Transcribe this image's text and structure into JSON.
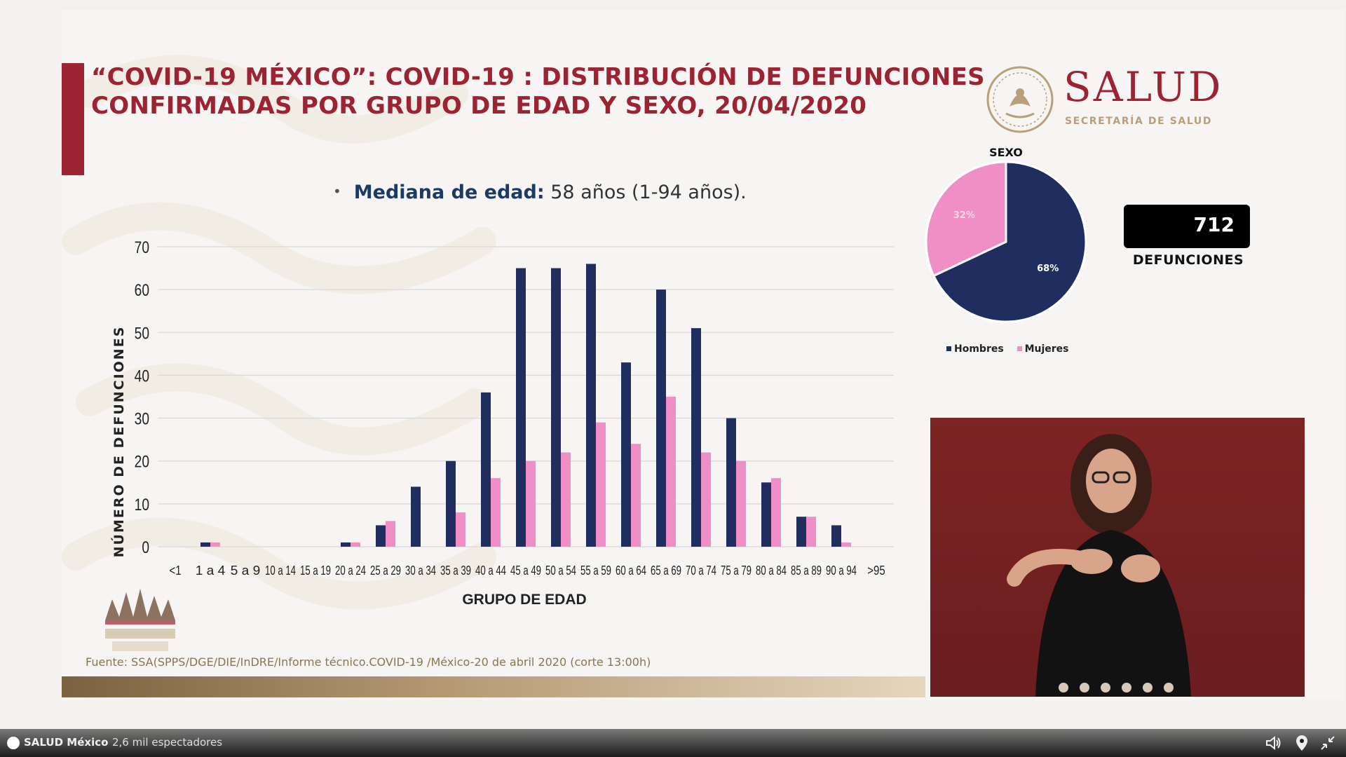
{
  "slide": {
    "title": "“COVID-19 MÉXICO”: COVID-19 : DISTRIBUCIÓN DE DEFUNCIONES CONFIRMADAS POR GRUPO DE EDAD Y SEXO, 20/04/2020",
    "logo_word": "SALUD",
    "logo_sub": "SECRETARÍA DE SALUD",
    "median_label": "Mediana de edad:",
    "median_value": "58 años (1-94 años).",
    "source": "Fuente: SSA(SPPS/DGE/DIE/InDRE/Informe técnico.COVID-19 /México-20 de abril 2020 (corte 13:00h)",
    "total_value": "712",
    "total_label": "DEFUNCIONES",
    "pie_title": "SEXO",
    "colors": {
      "brand": "#9c2331",
      "hombres": "#1f2e5e",
      "mujeres": "#f08fc6",
      "gold": "#b8a07a"
    }
  },
  "chart_data": [
    {
      "type": "bar",
      "xlabel": "GRUPO DE EDAD",
      "ylabel": "NÚMERO DE DEFUNCIONES",
      "ylim": [
        0,
        70
      ],
      "yticks": [
        0,
        10,
        20,
        30,
        40,
        50,
        60,
        70
      ],
      "grid": true,
      "categories": [
        "<1",
        "1 a 4",
        "5 a 9",
        "10 a 14",
        "15 a 19",
        "20 a 24",
        "25 a 29",
        "30 a 34",
        "35 a 39",
        "40 a 44",
        "45 a 49",
        "50 a 54",
        "55 a 59",
        "60 a 64",
        "65 a 69",
        "70 a 74",
        "75 a 79",
        "80 a 84",
        "85 a 89",
        "90 a 94",
        ">95"
      ],
      "series": [
        {
          "name": "Hombres",
          "color": "#1f2e5e",
          "values": [
            0,
            1,
            0,
            0,
            0,
            1,
            5,
            14,
            20,
            36,
            65,
            65,
            66,
            43,
            60,
            51,
            30,
            15,
            7,
            5,
            0
          ]
        },
        {
          "name": "Mujeres",
          "color": "#f08fc6",
          "values": [
            0,
            1,
            0,
            0,
            0,
            1,
            6,
            0,
            8,
            16,
            20,
            22,
            29,
            24,
            35,
            22,
            20,
            16,
            7,
            1,
            0
          ]
        }
      ]
    },
    {
      "type": "pie",
      "title": "SEXO",
      "legend": "bottom",
      "labels": [
        "Hombres",
        "Mujeres"
      ],
      "values": [
        68,
        32
      ],
      "value_labels": [
        "68%",
        "32%"
      ],
      "colors": [
        "#1f2e5e",
        "#f08fc6"
      ]
    }
  ],
  "video": {
    "channel": "SALUD México",
    "separator": "·",
    "viewers": "2,6 mil espectadores"
  }
}
